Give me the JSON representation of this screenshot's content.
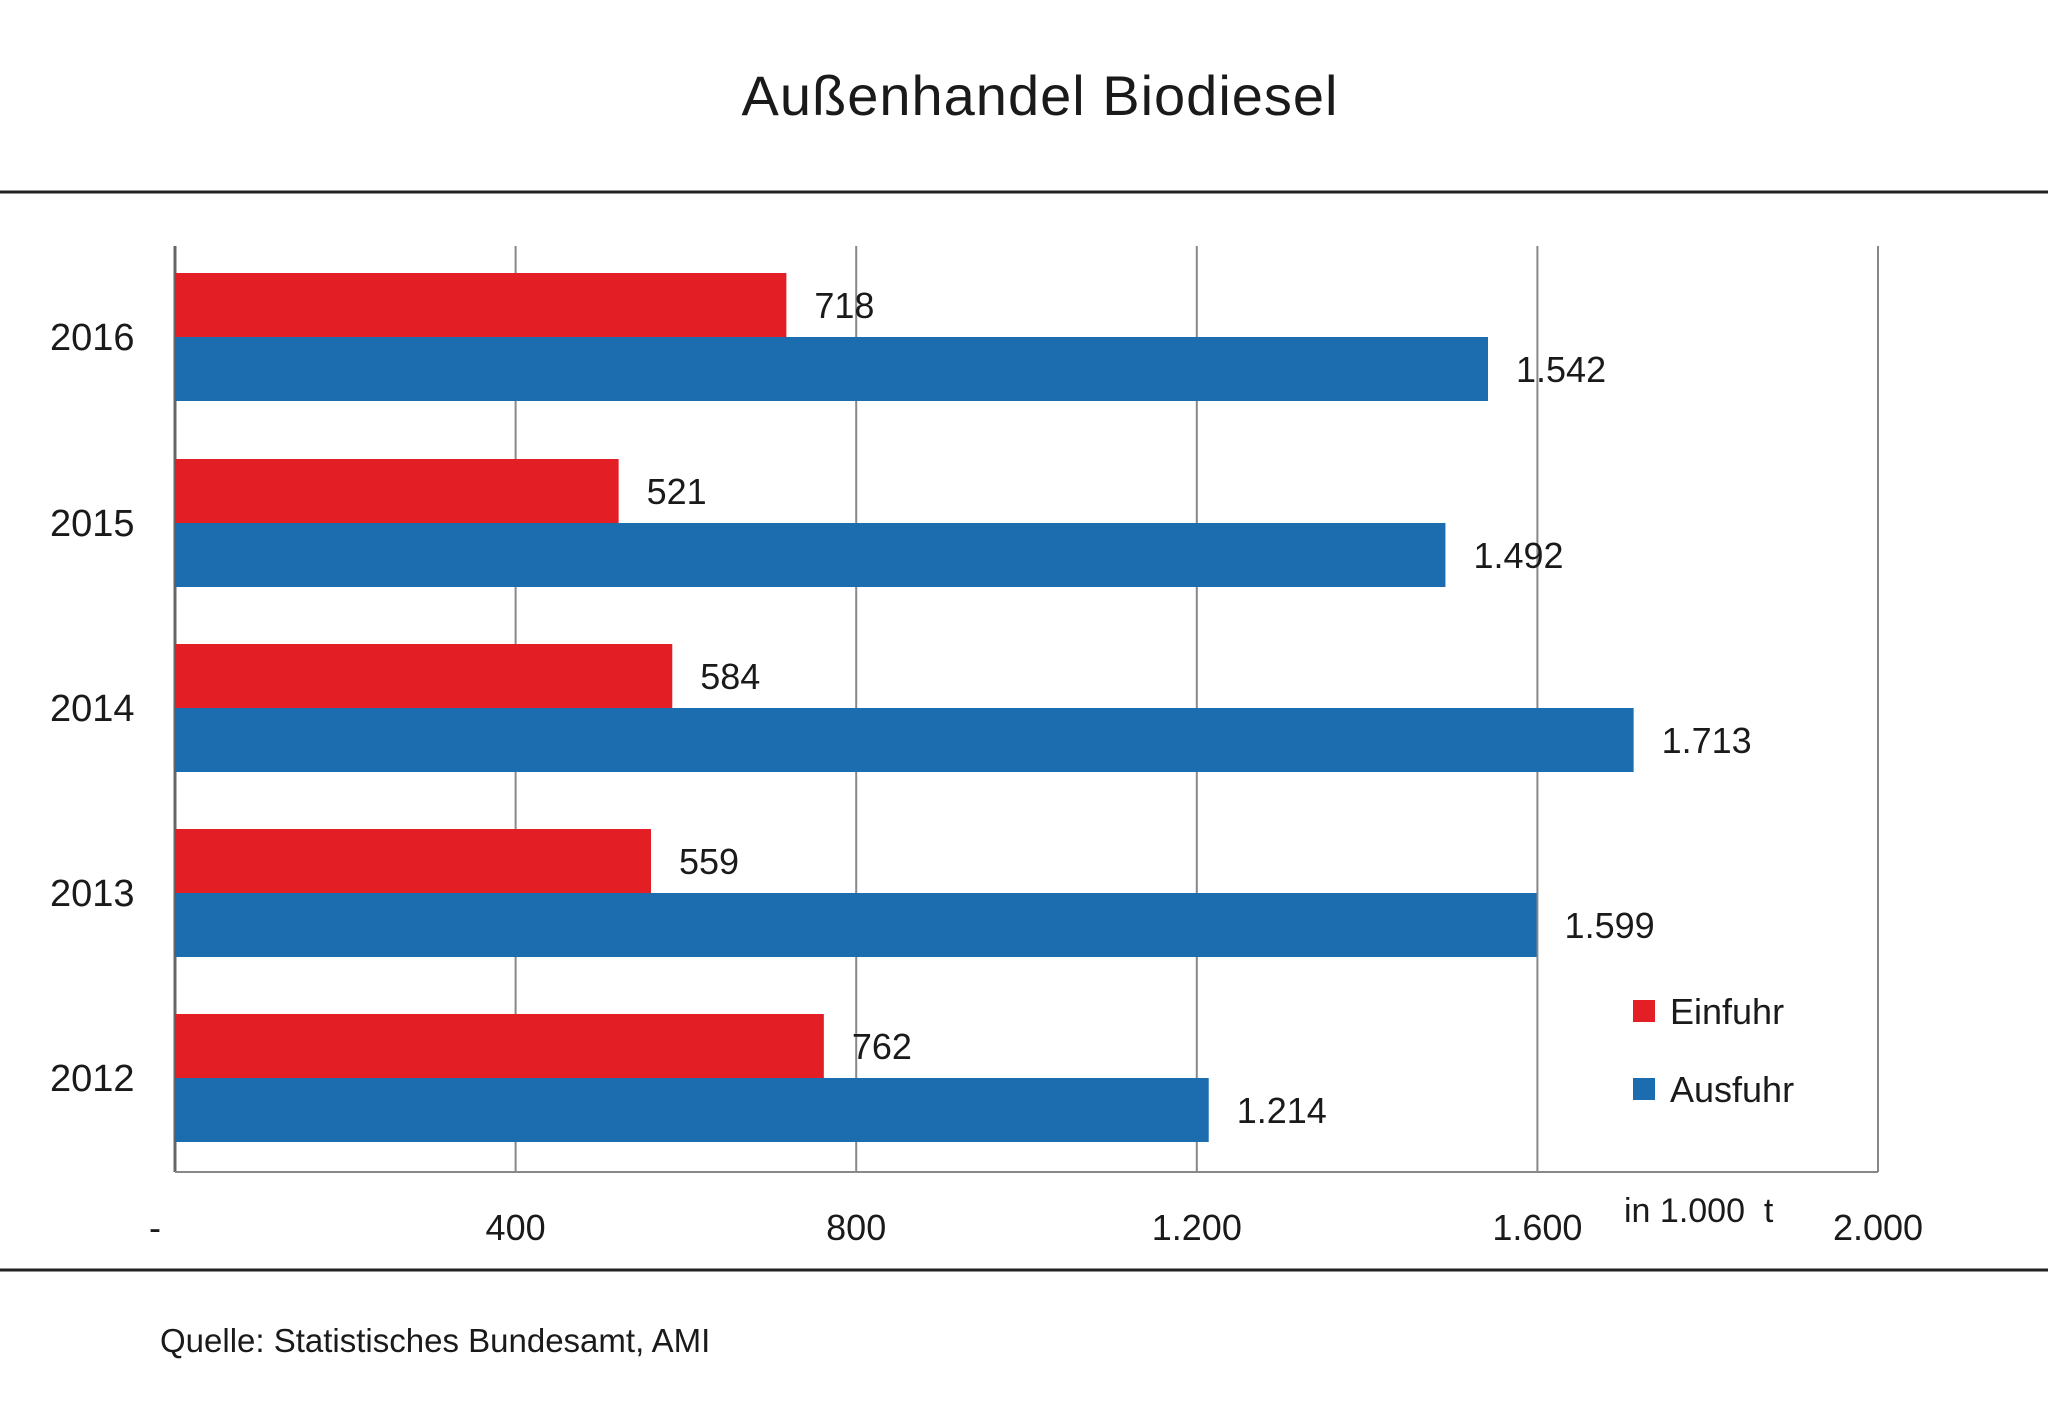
{
  "chart_data": {
    "type": "bar",
    "orientation": "horizontal",
    "title": "Außenhandel Biodiesel",
    "categories": [
      "2016",
      "2015",
      "2014",
      "2013",
      "2012"
    ],
    "series": [
      {
        "name": "Einfuhr",
        "color": "#e31e24",
        "values": [
          718,
          521,
          584,
          559,
          762
        ],
        "labels": [
          "718",
          "521",
          "584",
          "559",
          "762"
        ]
      },
      {
        "name": "Ausfuhr",
        "color": "#1b6db0",
        "values": [
          1542,
          1492,
          1713,
          1599,
          1214
        ],
        "labels": [
          "1.542",
          "1.492",
          "1.713",
          "1.599",
          "1.214"
        ]
      }
    ],
    "xlim": [
      0,
      2000
    ],
    "xticks": [
      0,
      400,
      800,
      1200,
      1600,
      2000
    ],
    "xtick_labels": [
      "-",
      "400",
      "800",
      "1.200",
      "1.600",
      "2.000"
    ],
    "unit_label": "in 1.000  t",
    "grid": true,
    "legend_position": "bottom-right"
  },
  "source": "Quelle: Statistisches Bundesamt, AMI"
}
